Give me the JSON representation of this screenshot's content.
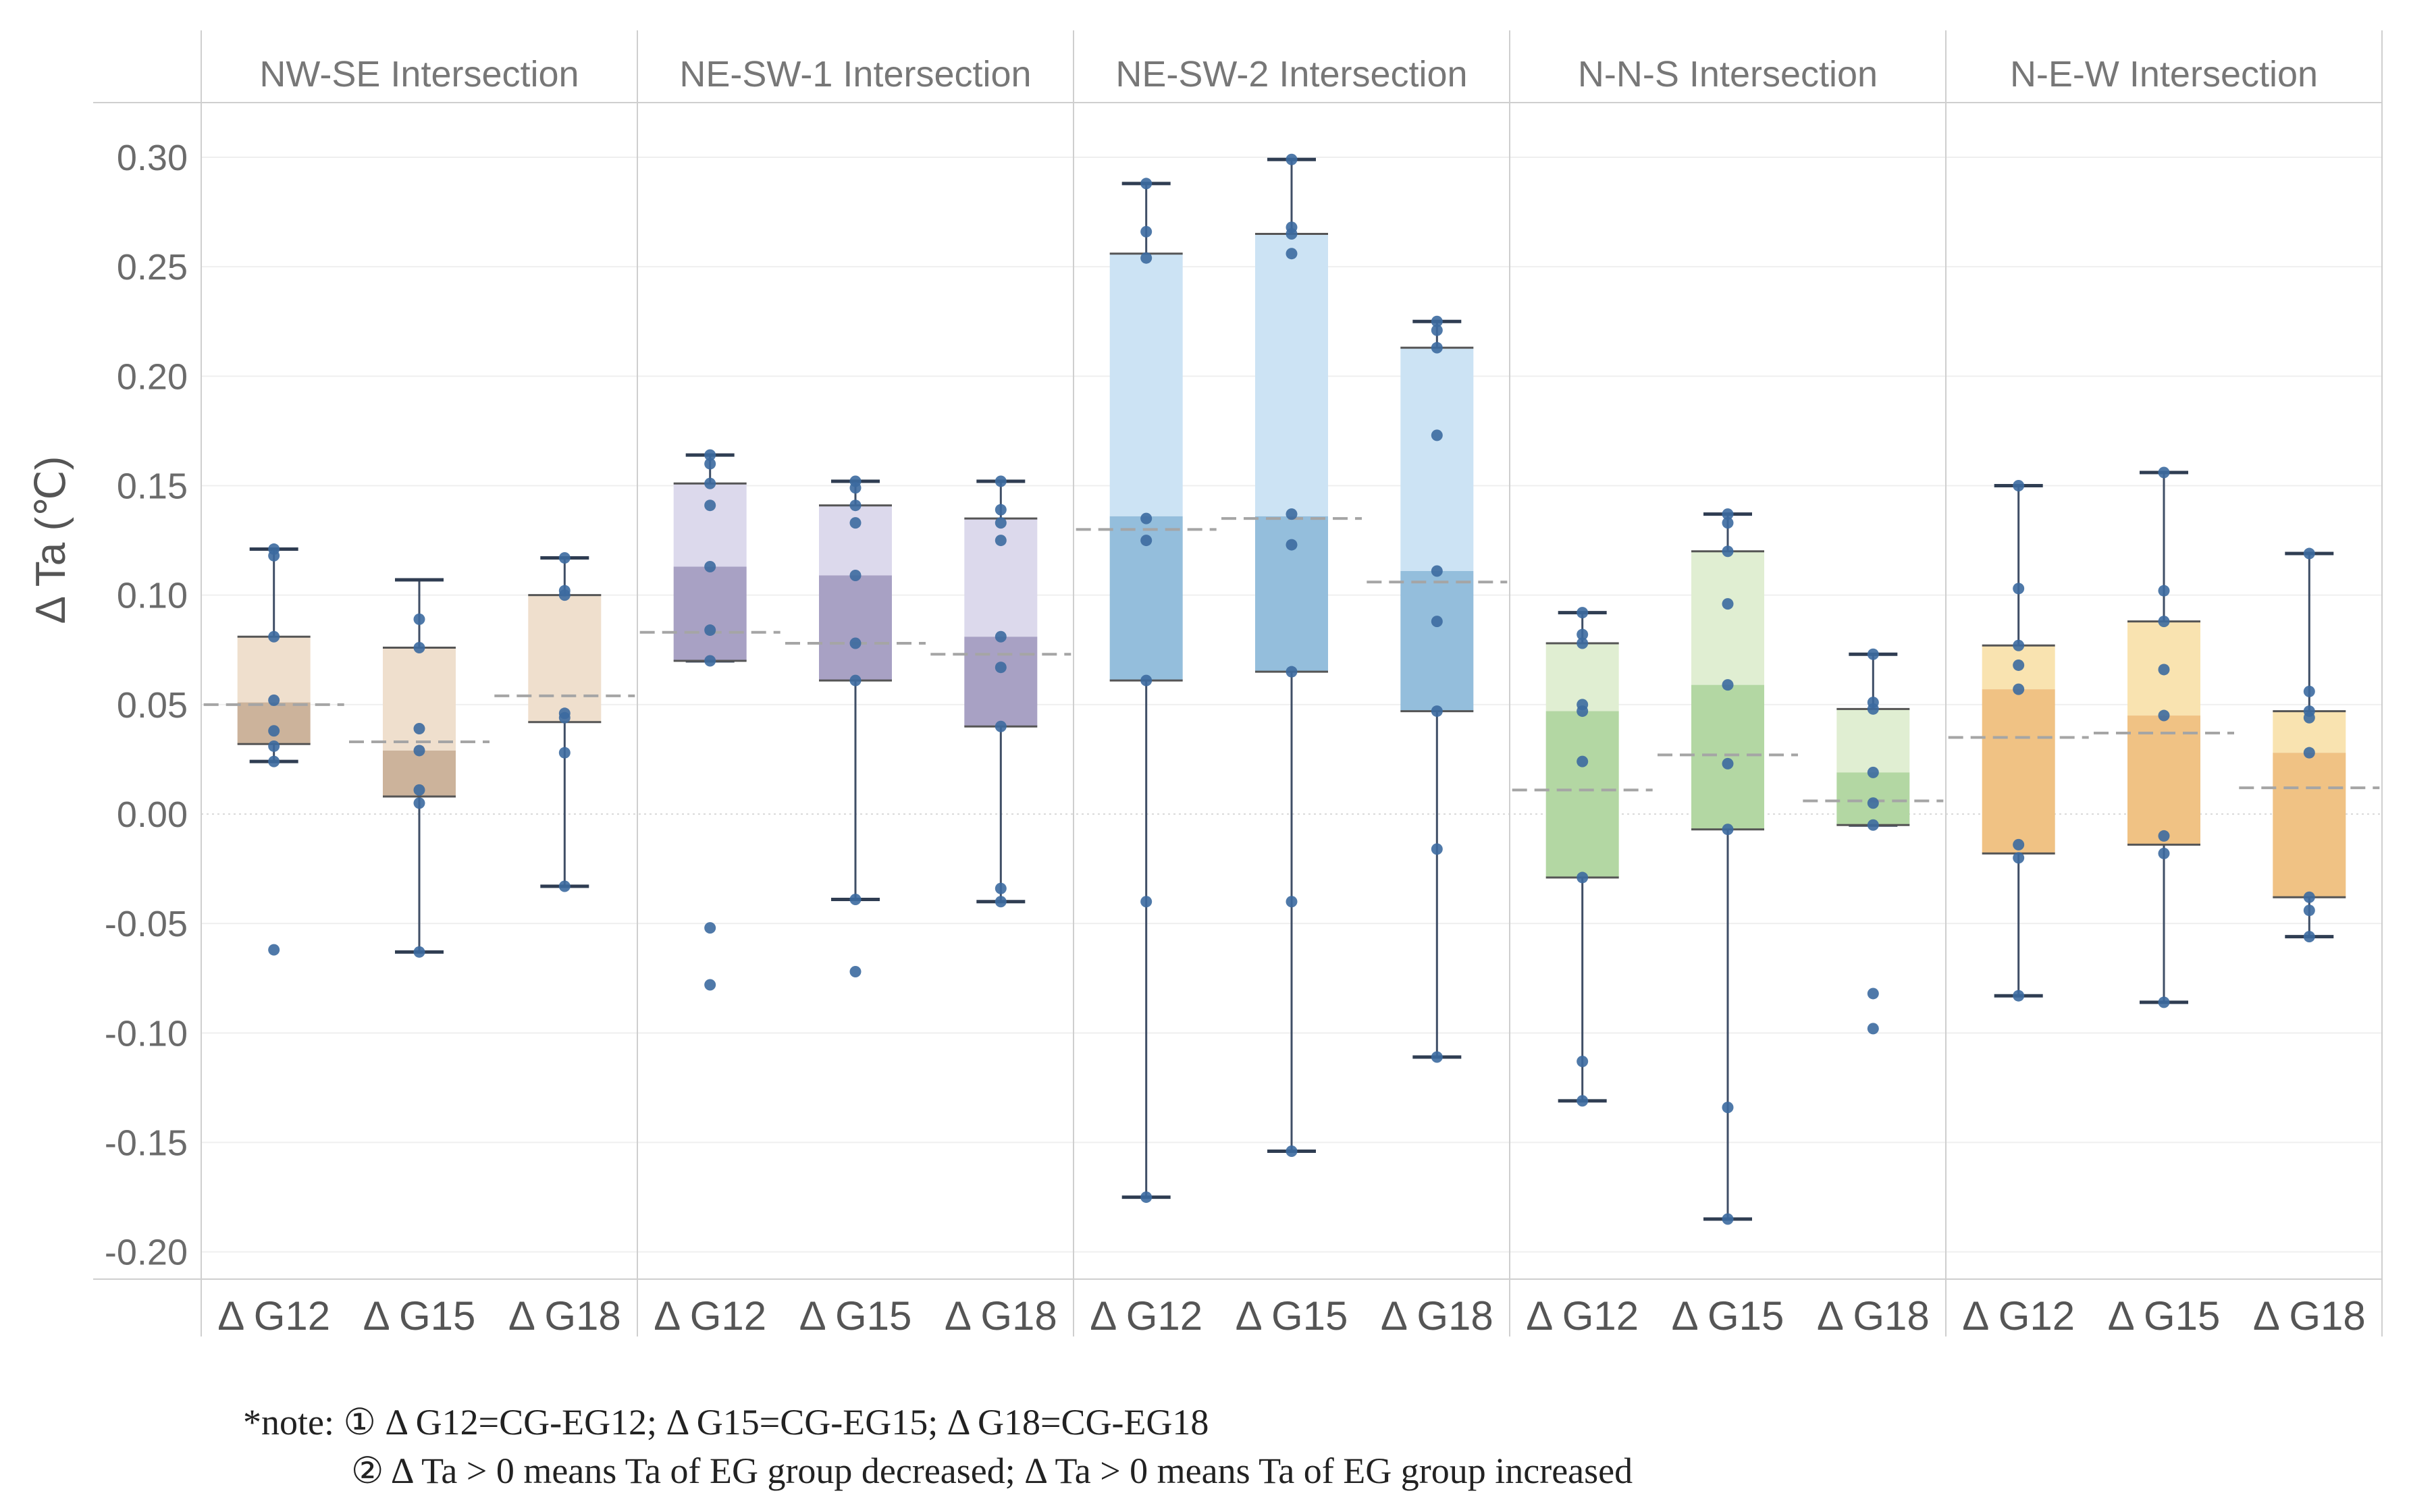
{
  "chart_data": {
    "type": "boxplot",
    "ylabel": "Δ Ta (℃)",
    "ylim": [
      -0.215,
      0.325
    ],
    "yticks": [
      0.3,
      0.25,
      0.2,
      0.15,
      0.1,
      0.05,
      0.0,
      -0.05,
      -0.1,
      -0.15,
      -0.2
    ],
    "ytick_labels": [
      "0.30",
      "0.25",
      "0.20",
      "0.15",
      "0.10",
      "0.05",
      "0.00",
      "-0.05",
      "-0.10",
      "-0.15",
      "-0.20"
    ],
    "categories": [
      "Δ G12",
      "Δ G15",
      "Δ G18"
    ],
    "panels": [
      {
        "title": "NW-SE Intersection",
        "colors": {
          "upper": "#efdfcd",
          "lower": "#ccb39b"
        },
        "groups": [
          {
            "category": "Δ G12",
            "whisker_low": 0.024,
            "q1": 0.032,
            "median": 0.051,
            "q3": 0.081,
            "whisker_high": 0.121,
            "mean": 0.05,
            "points": [
              0.121,
              0.118,
              0.081,
              0.052,
              0.038,
              0.031,
              0.024,
              -0.062
            ]
          },
          {
            "category": "Δ G15",
            "whisker_low": -0.063,
            "q1": 0.008,
            "median": 0.029,
            "q3": 0.076,
            "whisker_high": 0.107,
            "mean": 0.033,
            "points": [
              0.089,
              0.076,
              0.039,
              0.029,
              0.011,
              0.005,
              -0.063
            ]
          },
          {
            "category": "Δ G18",
            "whisker_low": -0.033,
            "q1": 0.042,
            "median": 0.042,
            "q3": 0.1,
            "whisker_high": 0.117,
            "mean": 0.054,
            "points": [
              0.117,
              0.102,
              0.1,
              0.046,
              0.044,
              0.028,
              -0.033
            ]
          }
        ]
      },
      {
        "title": "NE-SW-1 Intersection",
        "colors": {
          "upper": "#dcd9ec",
          "lower": "#a8a1c4"
        },
        "groups": [
          {
            "category": "Δ G12",
            "whisker_low": 0.07,
            "q1": 0.07,
            "median": 0.113,
            "q3": 0.151,
            "whisker_high": 0.164,
            "mean": 0.083,
            "points": [
              0.164,
              0.16,
              0.151,
              0.141,
              0.113,
              0.084,
              0.07,
              -0.052,
              -0.078
            ]
          },
          {
            "category": "Δ G15",
            "whisker_low": -0.039,
            "q1": 0.061,
            "median": 0.109,
            "q3": 0.141,
            "whisker_high": 0.152,
            "mean": 0.078,
            "points": [
              0.152,
              0.149,
              0.141,
              0.133,
              0.109,
              0.078,
              0.061,
              -0.039,
              -0.072
            ]
          },
          {
            "category": "Δ G18",
            "whisker_low": -0.04,
            "q1": 0.04,
            "median": 0.081,
            "q3": 0.135,
            "whisker_high": 0.152,
            "mean": 0.073,
            "points": [
              0.152,
              0.139,
              0.133,
              0.125,
              0.081,
              0.067,
              0.04,
              -0.034,
              -0.04
            ]
          }
        ]
      },
      {
        "title": "NE-SW-2 Intersection",
        "colors": {
          "upper": "#cce3f4",
          "lower": "#94bedc"
        },
        "groups": [
          {
            "category": "Δ G12",
            "whisker_low": -0.175,
            "q1": 0.061,
            "median": 0.136,
            "q3": 0.256,
            "whisker_high": 0.288,
            "mean": 0.13,
            "points": [
              0.288,
              0.266,
              0.254,
              0.135,
              0.125,
              0.061,
              -0.04,
              -0.175
            ]
          },
          {
            "category": "Δ G15",
            "whisker_low": -0.154,
            "q1": 0.065,
            "median": 0.136,
            "q3": 0.265,
            "whisker_high": 0.299,
            "mean": 0.135,
            "points": [
              0.299,
              0.268,
              0.265,
              0.256,
              0.137,
              0.123,
              0.065,
              -0.04,
              -0.154
            ]
          },
          {
            "category": "Δ G18",
            "whisker_low": -0.111,
            "q1": 0.047,
            "median": 0.111,
            "q3": 0.213,
            "whisker_high": 0.225,
            "mean": 0.106,
            "points": [
              0.225,
              0.221,
              0.213,
              0.173,
              0.111,
              0.088,
              0.047,
              -0.016,
              -0.111
            ]
          }
        ]
      },
      {
        "title": "N-N-S Intersection",
        "colors": {
          "upper": "#e0eed2",
          "lower": "#b3d7a3"
        },
        "groups": [
          {
            "category": "Δ G12",
            "whisker_low": -0.131,
            "q1": -0.029,
            "median": 0.047,
            "q3": 0.078,
            "whisker_high": 0.092,
            "mean": 0.011,
            "points": [
              0.092,
              0.082,
              0.078,
              0.05,
              0.047,
              0.024,
              -0.029,
              -0.113,
              -0.131
            ]
          },
          {
            "category": "Δ G15",
            "whisker_low": -0.185,
            "q1": -0.007,
            "median": 0.059,
            "q3": 0.12,
            "whisker_high": 0.137,
            "mean": 0.027,
            "points": [
              0.137,
              0.133,
              0.12,
              0.096,
              0.059,
              0.023,
              -0.007,
              -0.134,
              -0.185
            ]
          },
          {
            "category": "Δ G18",
            "whisker_low": -0.005,
            "q1": -0.005,
            "median": 0.019,
            "q3": 0.048,
            "whisker_high": 0.073,
            "mean": 0.006,
            "points": [
              0.073,
              0.051,
              0.048,
              0.019,
              0.005,
              -0.005,
              -0.082,
              -0.098
            ]
          }
        ]
      },
      {
        "title": "N-E-W Intersection",
        "colors": {
          "upper": "#f9e3b0",
          "lower": "#f0c284"
        },
        "groups": [
          {
            "category": "Δ G12",
            "whisker_low": -0.083,
            "q1": -0.018,
            "median": 0.057,
            "q3": 0.077,
            "whisker_high": 0.15,
            "mean": 0.035,
            "points": [
              0.15,
              0.103,
              0.077,
              0.068,
              0.057,
              -0.014,
              -0.02,
              -0.083
            ]
          },
          {
            "category": "Δ G15",
            "whisker_low": -0.086,
            "q1": -0.014,
            "median": 0.045,
            "q3": 0.088,
            "whisker_high": 0.156,
            "mean": 0.037,
            "points": [
              0.156,
              0.102,
              0.088,
              0.066,
              0.045,
              -0.01,
              -0.018,
              -0.086
            ]
          },
          {
            "category": "Δ G18",
            "whisker_low": -0.056,
            "q1": -0.038,
            "median": 0.028,
            "q3": 0.047,
            "whisker_high": 0.119,
            "mean": 0.012,
            "points": [
              0.119,
              0.056,
              0.047,
              0.044,
              0.028,
              -0.038,
              -0.044,
              -0.056
            ]
          }
        ]
      }
    ]
  },
  "note": {
    "line1": "*note: ① Δ G12=CG-EG12; Δ G15=CG-EG15; Δ G18=CG-EG18",
    "line2": "② Δ Ta > 0 means Ta of EG group decreased; Δ Ta > 0 means Ta of EG group increased"
  }
}
